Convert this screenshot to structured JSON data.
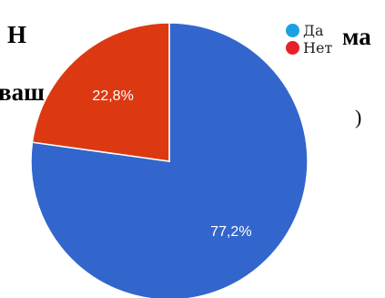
{
  "background_text": {
    "top_left": "Н",
    "top_right": "ма",
    "mid_left": "ваш",
    "mid_right": ")"
  },
  "chart_data": {
    "type": "pie",
    "title": "",
    "slices": [
      {
        "label": "Да",
        "value": 77.2,
        "display": "77,2%",
        "color": "#3366cc"
      },
      {
        "label": "Нет",
        "value": 22.8,
        "display": "22,8%",
        "color": "#dc3912"
      }
    ],
    "start_angle": "12 o'clock",
    "direction": "clockwise",
    "legend_position": "top-right",
    "slice_label_color": "#ffffff"
  }
}
